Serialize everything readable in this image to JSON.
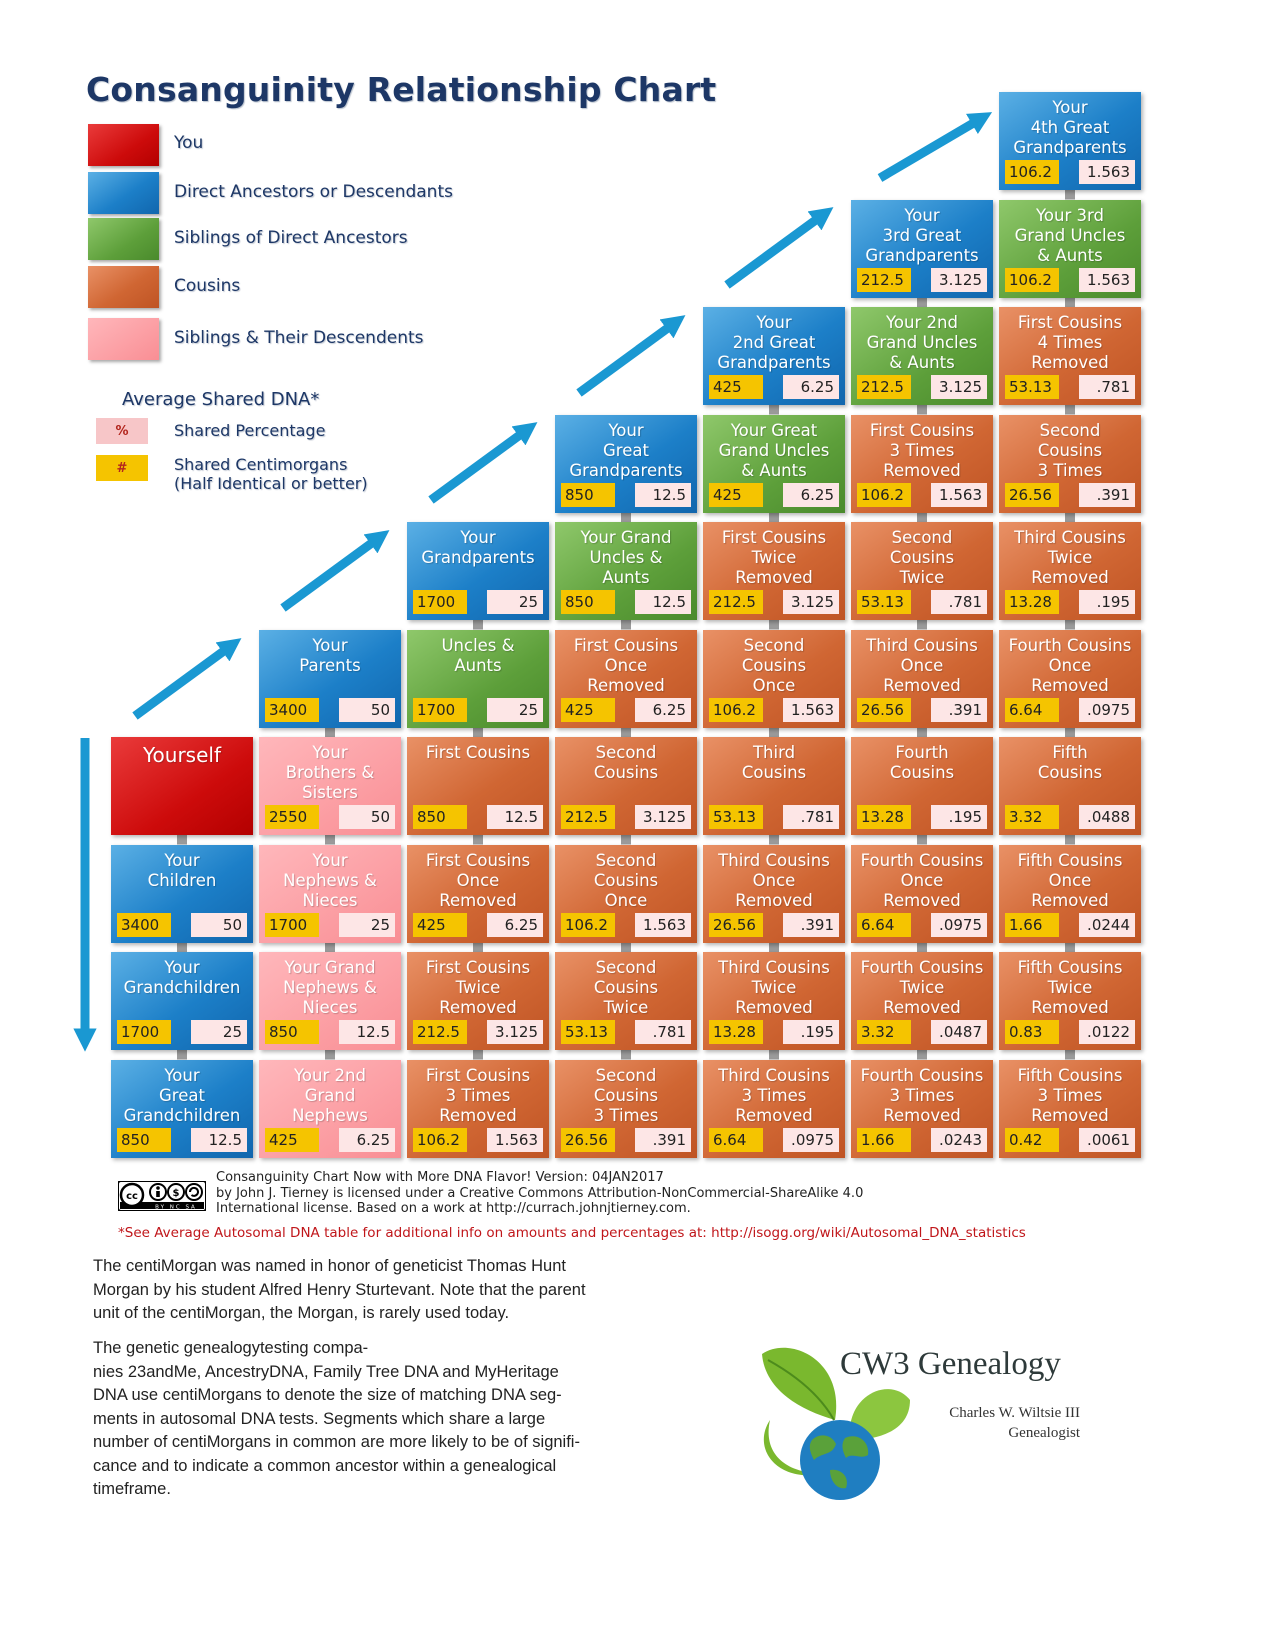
{
  "title": "Consanguinity Relationship Chart",
  "colors": {
    "you": "#cd0b0b",
    "direct": "#1c7fc8",
    "sibling_anc": "#5d9f3a",
    "cousin": "#d06633",
    "sibling_desc": "#f98e94",
    "cm_badge": "#f5c400",
    "pct_badge": "#fde6e6",
    "arrow": "#1a98d2",
    "connector": "#9a9a9a"
  },
  "legend": {
    "items": [
      {
        "label": "You",
        "type": "you"
      },
      {
        "label": "Direct Ancestors or Descendants",
        "type": "ancestor"
      },
      {
        "label": "Siblings of Direct Ancestors",
        "type": "sibling-anc"
      },
      {
        "label": "Cousins",
        "type": "cousin"
      },
      {
        "label": "Siblings & Their Descendents",
        "type": "sibling-desc"
      }
    ],
    "dna_heading": "Average Shared DNA*",
    "percent_symbol": "%",
    "percent_label": "Shared Percentage",
    "cm_symbol": "#",
    "cm_label": "Shared Centimorgans\n(Half Identical or better)"
  },
  "grid": [
    {
      "row": 0,
      "col": 6,
      "type": "ancestor",
      "label": "Your\n4th Great\nGrandparents",
      "cm": "106.2",
      "pct": "1.563"
    },
    {
      "row": 1,
      "col": 5,
      "type": "ancestor",
      "label": "Your\n3rd Great\nGrandparents",
      "cm": "212.5",
      "pct": "3.125"
    },
    {
      "row": 1,
      "col": 6,
      "type": "sibling-anc",
      "label": "Your 3rd\nGrand Uncles\n& Aunts",
      "cm": "106.2",
      "pct": "1.563"
    },
    {
      "row": 2,
      "col": 4,
      "type": "ancestor",
      "label": "Your\n2nd Great\nGrandparents",
      "cm": "425",
      "pct": "6.25"
    },
    {
      "row": 2,
      "col": 5,
      "type": "sibling-anc",
      "label": "Your 2nd\nGrand Uncles\n& Aunts",
      "cm": "212.5",
      "pct": "3.125"
    },
    {
      "row": 2,
      "col": 6,
      "type": "cousin",
      "label": "First Cousins\n4 Times\nRemoved",
      "cm": "53.13",
      "pct": ".781"
    },
    {
      "row": 3,
      "col": 3,
      "type": "ancestor",
      "label": "Your\nGreat\nGrandparents",
      "cm": "850",
      "pct": "12.5"
    },
    {
      "row": 3,
      "col": 4,
      "type": "sibling-anc",
      "label": "Your Great\nGrand Uncles\n& Aunts",
      "cm": "425",
      "pct": "6.25"
    },
    {
      "row": 3,
      "col": 5,
      "type": "cousin",
      "label": "First Cousins\n3 Times\nRemoved",
      "cm": "106.2",
      "pct": "1.563"
    },
    {
      "row": 3,
      "col": 6,
      "type": "cousin",
      "label": "Second\nCousins\n3 Times",
      "cm": "26.56",
      "pct": ".391"
    },
    {
      "row": 4,
      "col": 2,
      "type": "ancestor",
      "label": "Your\nGrandparents",
      "cm": "1700",
      "pct": "25"
    },
    {
      "row": 4,
      "col": 3,
      "type": "sibling-anc",
      "label": "Your Grand\nUncles &\nAunts",
      "cm": "850",
      "pct": "12.5"
    },
    {
      "row": 4,
      "col": 4,
      "type": "cousin",
      "label": "First Cousins\nTwice\nRemoved",
      "cm": "212.5",
      "pct": "3.125"
    },
    {
      "row": 4,
      "col": 5,
      "type": "cousin",
      "label": "Second\nCousins\nTwice",
      "cm": "53.13",
      "pct": ".781"
    },
    {
      "row": 4,
      "col": 6,
      "type": "cousin",
      "label": "Third Cousins\nTwice\nRemoved",
      "cm": "13.28",
      "pct": ".195"
    },
    {
      "row": 5,
      "col": 1,
      "type": "ancestor",
      "label": "Your\nParents",
      "cm": "3400",
      "pct": "50"
    },
    {
      "row": 5,
      "col": 2,
      "type": "sibling-anc",
      "label": "Uncles &\nAunts",
      "cm": "1700",
      "pct": "25"
    },
    {
      "row": 5,
      "col": 3,
      "type": "cousin",
      "label": "First Cousins\nOnce\nRemoved",
      "cm": "425",
      "pct": "6.25"
    },
    {
      "row": 5,
      "col": 4,
      "type": "cousin",
      "label": "Second\nCousins\nOnce",
      "cm": "106.2",
      "pct": "1.563"
    },
    {
      "row": 5,
      "col": 5,
      "type": "cousin",
      "label": "Third Cousins\nOnce\nRemoved",
      "cm": "26.56",
      "pct": ".391"
    },
    {
      "row": 5,
      "col": 6,
      "type": "cousin",
      "label": "Fourth Cousins\nOnce\nRemoved",
      "cm": "6.64",
      "pct": ".0975"
    },
    {
      "row": 6,
      "col": 0,
      "type": "you",
      "label": "Yourself",
      "cm": "",
      "pct": ""
    },
    {
      "row": 6,
      "col": 1,
      "type": "sibling-desc",
      "label": "Your\nBrothers &\nSisters",
      "cm": "2550",
      "pct": "50"
    },
    {
      "row": 6,
      "col": 2,
      "type": "cousin",
      "label": "First Cousins",
      "cm": "850",
      "pct": "12.5"
    },
    {
      "row": 6,
      "col": 3,
      "type": "cousin",
      "label": "Second\nCousins",
      "cm": "212.5",
      "pct": "3.125"
    },
    {
      "row": 6,
      "col": 4,
      "type": "cousin",
      "label": "Third\nCousins",
      "cm": "53.13",
      "pct": ".781"
    },
    {
      "row": 6,
      "col": 5,
      "type": "cousin",
      "label": "Fourth\nCousins",
      "cm": "13.28",
      "pct": ".195"
    },
    {
      "row": 6,
      "col": 6,
      "type": "cousin",
      "label": "Fifth\nCousins",
      "cm": "3.32",
      "pct": ".0488"
    },
    {
      "row": 7,
      "col": 0,
      "type": "ancestor",
      "label": "Your\nChildren",
      "cm": "3400",
      "pct": "50"
    },
    {
      "row": 7,
      "col": 1,
      "type": "sibling-desc",
      "label": "Your\nNephews &\nNieces",
      "cm": "1700",
      "pct": "25"
    },
    {
      "row": 7,
      "col": 2,
      "type": "cousin",
      "label": "First Cousins\nOnce\nRemoved",
      "cm": "425",
      "pct": "6.25"
    },
    {
      "row": 7,
      "col": 3,
      "type": "cousin",
      "label": "Second\nCousins\nOnce",
      "cm": "106.2",
      "pct": "1.563"
    },
    {
      "row": 7,
      "col": 4,
      "type": "cousin",
      "label": "Third Cousins\nOnce\nRemoved",
      "cm": "26.56",
      "pct": ".391"
    },
    {
      "row": 7,
      "col": 5,
      "type": "cousin",
      "label": "Fourth Cousins\nOnce\nRemoved",
      "cm": "6.64",
      "pct": ".0975"
    },
    {
      "row": 7,
      "col": 6,
      "type": "cousin",
      "label": "Fifth Cousins\nOnce\nRemoved",
      "cm": "1.66",
      "pct": ".0244"
    },
    {
      "row": 8,
      "col": 0,
      "type": "ancestor",
      "label": "Your\nGrandchildren",
      "cm": "1700",
      "pct": "25"
    },
    {
      "row": 8,
      "col": 1,
      "type": "sibling-desc",
      "label": "Your Grand\nNephews &\nNieces",
      "cm": "850",
      "pct": "12.5"
    },
    {
      "row": 8,
      "col": 2,
      "type": "cousin",
      "label": "First Cousins\nTwice\nRemoved",
      "cm": "212.5",
      "pct": "3.125"
    },
    {
      "row": 8,
      "col": 3,
      "type": "cousin",
      "label": "Second\nCousins\nTwice",
      "cm": "53.13",
      "pct": ".781"
    },
    {
      "row": 8,
      "col": 4,
      "type": "cousin",
      "label": "Third Cousins\nTwice\nRemoved",
      "cm": "13.28",
      "pct": ".195"
    },
    {
      "row": 8,
      "col": 5,
      "type": "cousin",
      "label": "Fourth Cousins\nTwice\nRemoved",
      "cm": "3.32",
      "pct": ".0487"
    },
    {
      "row": 8,
      "col": 6,
      "type": "cousin",
      "label": "Fifth Cousins\nTwice\nRemoved",
      "cm": "0.83",
      "pct": ".0122"
    },
    {
      "row": 9,
      "col": 0,
      "type": "ancestor",
      "label": "Your\nGreat\nGrandchildren",
      "cm": "850",
      "pct": "12.5"
    },
    {
      "row": 9,
      "col": 1,
      "type": "sibling-desc",
      "label": "Your 2nd\nGrand\nNephews",
      "cm": "425",
      "pct": "6.25"
    },
    {
      "row": 9,
      "col": 2,
      "type": "cousin",
      "label": "First Cousins\n3 Times\nRemoved",
      "cm": "106.2",
      "pct": "1.563"
    },
    {
      "row": 9,
      "col": 3,
      "type": "cousin",
      "label": "Second\nCousins\n3 Times",
      "cm": "26.56",
      "pct": ".391"
    },
    {
      "row": 9,
      "col": 4,
      "type": "cousin",
      "label": "Third Cousins\n3 Times\nRemoved",
      "cm": "6.64",
      "pct": ".0975"
    },
    {
      "row": 9,
      "col": 5,
      "type": "cousin",
      "label": "Fourth Cousins\n3 Times\nRemoved",
      "cm": "1.66",
      "pct": ".0243"
    },
    {
      "row": 9,
      "col": 6,
      "type": "cousin",
      "label": "Fifth Cousins\n3 Times\nRemoved",
      "cm": "0.42",
      "pct": ".0061"
    }
  ],
  "license": {
    "icon": "creative-commons-by-nc-sa-icon",
    "icon_text": "cc by nc sa",
    "credit": "Consanguinity Chart Now with More DNA Flavor! Version: 04JAN2017\nby John J. Tierney is licensed under a Creative Commons Attribution-NonCommercial-ShareAlike 4.0\nInternational license. Based on a work at http://currach.johnjtierney.com.",
    "note": "*See Average Autosomal DNA table for additional info on amounts and percentages at: http://isogg.org/wiki/Autosomal_DNA_statistics"
  },
  "paragraphs": [
    "The centiMorgan was named in honor of geneticist Thomas Hunt\nMorgan by his student Alfred Henry Sturtevant. Note that the parent\nunit of the centiMorgan, the Morgan, is rarely used today.",
    "The genetic genealogytesting compa-\nnies 23andMe, AncestryDNA, Family Tree DNA and MyHeritage\nDNA use centiMorgans to denote the size of matching DNA seg-\nments in autosomal DNA tests. Segments which share a large\nnumber of centiMorgans in common are more likely to be of signifi-\ncance and to indicate a common ancestor within a genealogical\ntimeframe."
  ],
  "brand": {
    "icon": "globe-leaf-logo-icon",
    "title": "CW3 Genealogy",
    "name": "Charles W. Wiltsie III",
    "role": "Genealogist"
  }
}
